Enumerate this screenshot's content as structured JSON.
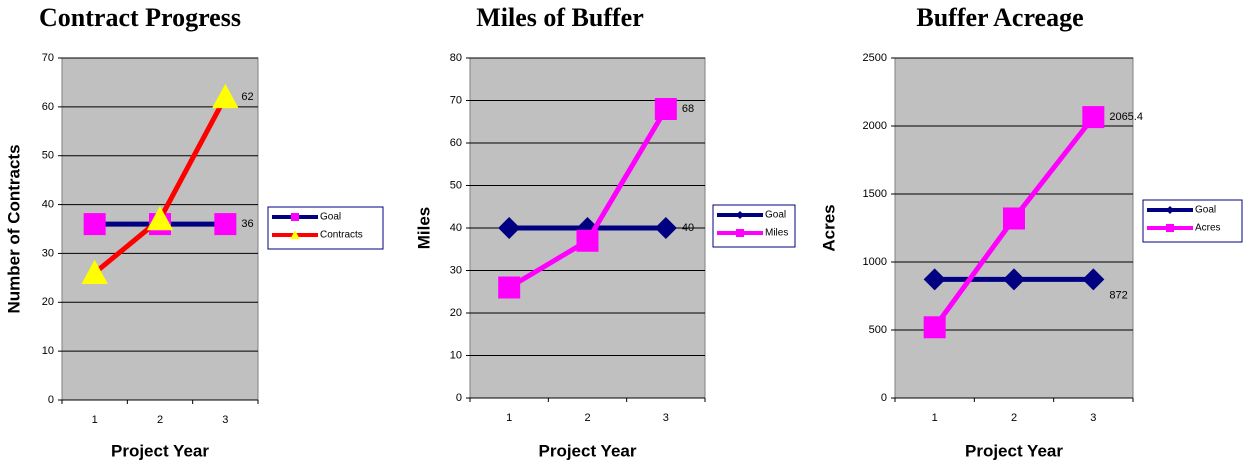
{
  "chart_data": [
    {
      "type": "line",
      "title": "Contract Progress",
      "x_label": "Project Year",
      "y_label": "Number of Contracts",
      "categories": [
        "1",
        "2",
        "3"
      ],
      "ylim": [
        0,
        70
      ],
      "yticks": [
        0,
        10,
        20,
        30,
        40,
        50,
        60,
        70
      ],
      "grid": true,
      "series": [
        {
          "name": "Goal",
          "color": "#000080",
          "marker": "square",
          "marker_color": "#ff00ff",
          "values": [
            36,
            36,
            36
          ],
          "label_last": true
        },
        {
          "name": "Contracts",
          "color": "#ff0000",
          "marker": "triangle",
          "marker_color": "#ffff00",
          "values": [
            26,
            37,
            62
          ],
          "label_last": true
        }
      ]
    },
    {
      "type": "line",
      "title": "Miles of Buffer",
      "x_label": "Project Year",
      "y_label": "Miles",
      "categories": [
        "1",
        "2",
        "3"
      ],
      "ylim": [
        0,
        80
      ],
      "yticks": [
        0,
        10,
        20,
        30,
        40,
        50,
        60,
        70,
        80
      ],
      "grid": true,
      "series": [
        {
          "name": "Goal",
          "color": "#000080",
          "marker": "diamond",
          "marker_color": "#000080",
          "values": [
            40,
            40,
            40
          ],
          "label_last": true
        },
        {
          "name": "Miles",
          "color": "#ff00ff",
          "marker": "square",
          "marker_color": "#ff00ff",
          "values": [
            26,
            37,
            68
          ],
          "label_last": true
        }
      ]
    },
    {
      "type": "line",
      "title": "Buffer Acreage",
      "x_label": "Project Year",
      "y_label": "Acres",
      "categories": [
        "1",
        "2",
        "3"
      ],
      "ylim": [
        0,
        2500
      ],
      "yticks": [
        0,
        500,
        1000,
        1500,
        2000,
        2500
      ],
      "grid": true,
      "series": [
        {
          "name": "Goal",
          "color": "#000080",
          "marker": "diamond",
          "marker_color": "#000080",
          "values": [
            872,
            872,
            872
          ],
          "label_last": true
        },
        {
          "name": "Acres",
          "color": "#ff00ff",
          "marker": "square",
          "marker_color": "#ff00ff",
          "values": [
            520,
            1320,
            2065.4
          ],
          "label_last": true
        }
      ]
    }
  ]
}
